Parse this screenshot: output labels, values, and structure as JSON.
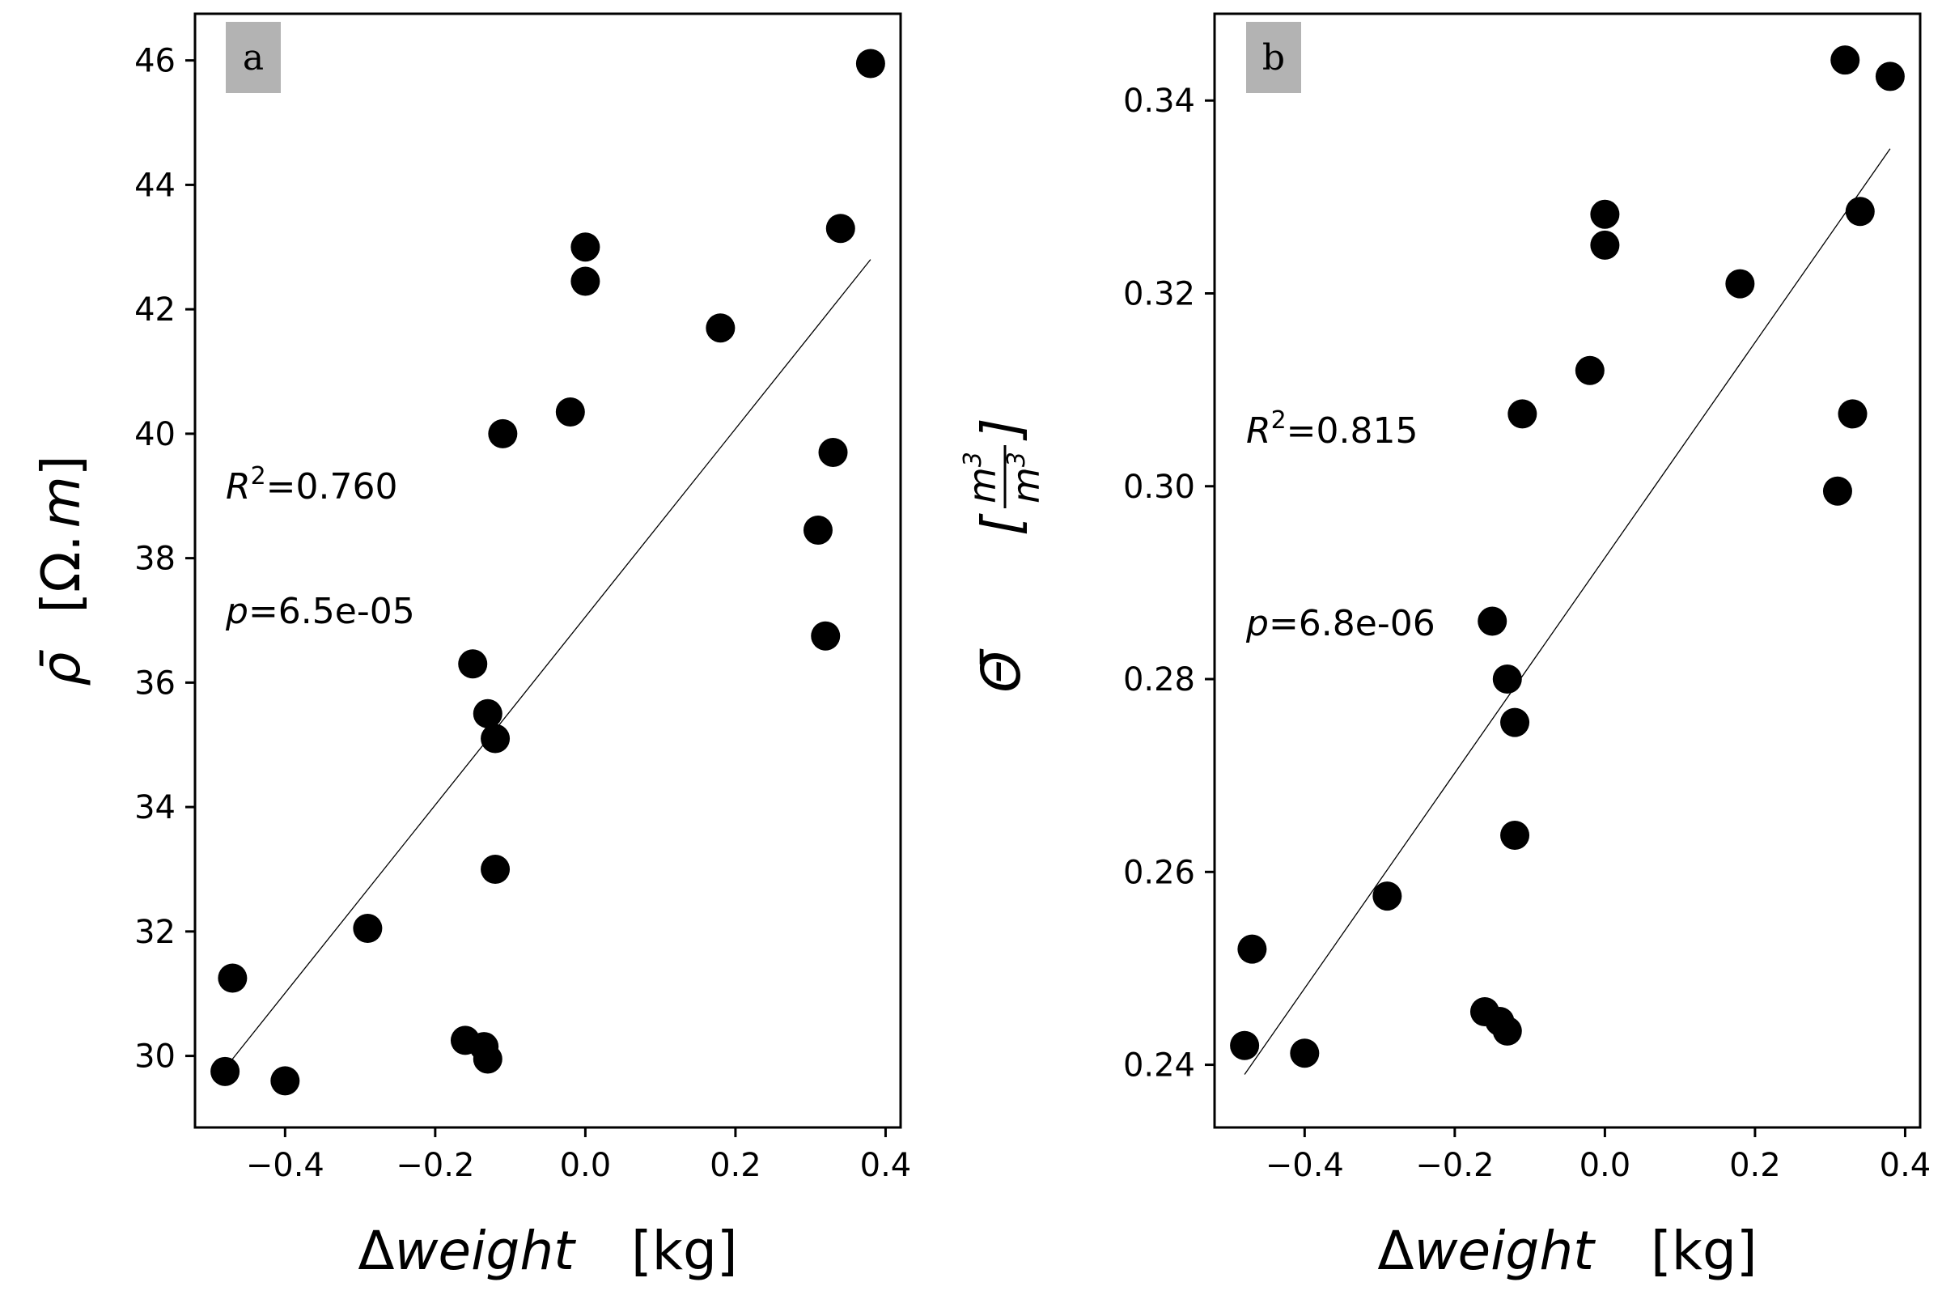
{
  "colors": {
    "points": "#000000",
    "fit_line": "#000000",
    "panel_tag_background": "#b3b3b3"
  },
  "chart_data": [
    {
      "type": "scatter",
      "panel_label": "a",
      "xlabel_prefix": "Δ",
      "xlabel_var": "weight",
      "xlabel_unit": "[kg]",
      "ylabel_var": "ρ̄",
      "ylabel_unit_open": "[Ω.",
      "ylabel_unit_var": "m",
      "ylabel_unit_close": "]",
      "xlim": [
        -0.52,
        0.42
      ],
      "ylim": [
        28.85,
        46.75
      ],
      "xticks": [
        -0.4,
        -0.2,
        0.0,
        0.2,
        0.4
      ],
      "xtick_labels": [
        "−0.4",
        "−0.2",
        "0.0",
        "0.2",
        "0.4"
      ],
      "yticks": [
        30,
        32,
        34,
        36,
        38,
        40,
        42,
        44,
        46
      ],
      "ytick_labels": [
        "30",
        "32",
        "34",
        "36",
        "38",
        "40",
        "42",
        "44",
        "46"
      ],
      "grid": false,
      "r2_var": "R",
      "r2_sup": "2",
      "r2_value": "=0.760",
      "p_var": "p",
      "p_value": "=6.5e-05",
      "fit_line": {
        "x": [
          -0.48,
          0.38
        ],
        "y": [
          29.8,
          42.8
        ]
      },
      "points": [
        {
          "x": -0.48,
          "y": 29.75
        },
        {
          "x": -0.47,
          "y": 31.25
        },
        {
          "x": -0.4,
          "y": 29.6
        },
        {
          "x": -0.29,
          "y": 32.05
        },
        {
          "x": -0.16,
          "y": 30.25
        },
        {
          "x": -0.15,
          "y": 36.3
        },
        {
          "x": -0.135,
          "y": 30.15
        },
        {
          "x": -0.13,
          "y": 29.95
        },
        {
          "x": -0.13,
          "y": 35.5
        },
        {
          "x": -0.12,
          "y": 35.1
        },
        {
          "x": -0.12,
          "y": 33.0
        },
        {
          "x": -0.11,
          "y": 40.0
        },
        {
          "x": -0.02,
          "y": 40.35
        },
        {
          "x": 0.0,
          "y": 43.0
        },
        {
          "x": 0.0,
          "y": 42.45
        },
        {
          "x": 0.18,
          "y": 41.7
        },
        {
          "x": 0.31,
          "y": 38.45
        },
        {
          "x": 0.32,
          "y": 36.75
        },
        {
          "x": 0.33,
          "y": 39.7
        },
        {
          "x": 0.34,
          "y": 43.3
        },
        {
          "x": 0.38,
          "y": 45.95
        }
      ]
    },
    {
      "type": "scatter",
      "panel_label": "b",
      "xlabel_prefix": "Δ",
      "xlabel_var": "weight",
      "xlabel_unit": "[kg]",
      "ylabel_var": "Θ̄",
      "ylabel_unit_open": "[",
      "ylabel_frac_num": "m",
      "ylabel_frac_den": "m",
      "ylabel_frac_sup": "3",
      "ylabel_unit_close": "]",
      "xlim": [
        -0.52,
        0.42
      ],
      "ylim": [
        0.2335,
        0.349
      ],
      "xticks": [
        -0.4,
        -0.2,
        0.0,
        0.2,
        0.4
      ],
      "xtick_labels": [
        "−0.4",
        "−0.2",
        "0.0",
        "0.2",
        "0.4"
      ],
      "yticks": [
        0.24,
        0.26,
        0.28,
        0.3,
        0.32,
        0.34
      ],
      "ytick_labels": [
        "0.24",
        "0.26",
        "0.28",
        "0.30",
        "0.32",
        "0.34"
      ],
      "grid": false,
      "r2_var": "R",
      "r2_sup": "2",
      "r2_value": "=0.815",
      "p_var": "p",
      "p_value": "=6.8e-06",
      "fit_line": {
        "x": [
          -0.48,
          0.38
        ],
        "y": [
          0.239,
          0.335
        ]
      },
      "points": [
        {
          "x": -0.48,
          "y": 0.242
        },
        {
          "x": -0.47,
          "y": 0.252
        },
        {
          "x": -0.4,
          "y": 0.2412
        },
        {
          "x": -0.29,
          "y": 0.2575
        },
        {
          "x": -0.16,
          "y": 0.2455
        },
        {
          "x": -0.15,
          "y": 0.286
        },
        {
          "x": -0.14,
          "y": 0.2445
        },
        {
          "x": -0.13,
          "y": 0.2435
        },
        {
          "x": -0.13,
          "y": 0.28
        },
        {
          "x": -0.12,
          "y": 0.2755
        },
        {
          "x": -0.12,
          "y": 0.2638
        },
        {
          "x": -0.11,
          "y": 0.3075
        },
        {
          "x": -0.02,
          "y": 0.312
        },
        {
          "x": 0.0,
          "y": 0.3282
        },
        {
          "x": 0.0,
          "y": 0.325
        },
        {
          "x": 0.18,
          "y": 0.321
        },
        {
          "x": 0.31,
          "y": 0.2995
        },
        {
          "x": 0.32,
          "y": 0.3442
        },
        {
          "x": 0.33,
          "y": 0.3075
        },
        {
          "x": 0.34,
          "y": 0.3285
        },
        {
          "x": 0.38,
          "y": 0.3425
        }
      ]
    }
  ]
}
